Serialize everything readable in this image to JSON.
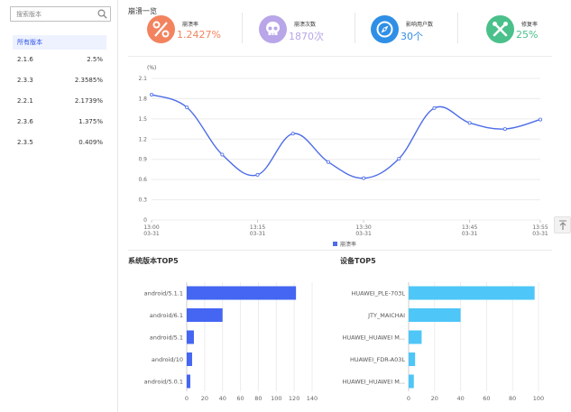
{
  "sidebar": {
    "search_placeholder": "搜索版本",
    "items": [
      {
        "label": "所有版本",
        "value": ""
      },
      {
        "label": "2.1.6",
        "value": "2.5%"
      },
      {
        "label": "2.3.3",
        "value": "2.3585%"
      },
      {
        "label": "2.2.1",
        "value": "2.1739%"
      },
      {
        "label": "2.3.6",
        "value": "1.375%"
      },
      {
        "label": "2.3.5",
        "value": "0.409%"
      }
    ]
  },
  "overview": {
    "title": "崩溃一览",
    "stats": [
      {
        "label": "崩溃率",
        "value": "1.2427%",
        "color": "#f3835f",
        "icon": "percent-icon"
      },
      {
        "label": "崩溃次数",
        "value": "1870次",
        "color": "#b8a6e9",
        "icon": "skull-icon"
      },
      {
        "label": "影响用户数",
        "value": "30个",
        "color": "#2f8fe6",
        "icon": "compass-icon"
      },
      {
        "label": "修复率",
        "value": "25%",
        "color": "#4ac08b",
        "icon": "tools-icon"
      }
    ]
  },
  "chart_data": [
    {
      "type": "line",
      "ylabel": "(%)",
      "ylim": [
        0,
        2.1
      ],
      "yticks": [
        "0",
        "0.3",
        "0.6",
        "0.9",
        "1.2",
        "1.5",
        "1.8",
        "2.1"
      ],
      "xticks": [
        {
          "time": "13:00",
          "date": "03-31"
        },
        {
          "time": "13:15",
          "date": "03-31"
        },
        {
          "time": "13:30",
          "date": "03-31"
        },
        {
          "time": "13:45",
          "date": "03-31"
        },
        {
          "time": "13:55",
          "date": "03-31"
        }
      ],
      "x_minutes": [
        0,
        5,
        10,
        15,
        20,
        25,
        30,
        35,
        40,
        45,
        50,
        55
      ],
      "series": [
        {
          "name": "崩溃率",
          "color": "#4d6de8",
          "values": [
            1.86,
            1.67,
            0.97,
            0.67,
            1.28,
            0.86,
            0.62,
            0.91,
            1.66,
            1.44,
            1.35,
            1.49
          ]
        }
      ],
      "legend": "bottom-center",
      "grid": true
    },
    {
      "type": "bar",
      "orientation": "horizontal",
      "title": "系统版本TOP5",
      "categories": [
        "android/5.1.1",
        "android/6.1",
        "android/5.1",
        "android/10",
        "android/5.0.1"
      ],
      "values": [
        122,
        40,
        8,
        6,
        4
      ],
      "xlim": [
        0,
        140
      ],
      "xticks": [
        "0",
        "20",
        "40",
        "60",
        "80",
        "100",
        "120",
        "140"
      ],
      "color": "#4466f2",
      "grid": true
    },
    {
      "type": "bar",
      "orientation": "horizontal",
      "title": "设备TOP5",
      "categories": [
        "HUAWEI_PLE-703L",
        "JTY_MAICHAI",
        "HUAWEI_HUAWEI M...",
        "HUAWEI_FDR-A03L",
        "HUAWEI_HUAWEI M..."
      ],
      "values": [
        97,
        40,
        10,
        5,
        4
      ],
      "xlim": [
        0,
        100
      ],
      "xticks": [
        "0",
        "20",
        "40",
        "60",
        "80",
        "100"
      ],
      "color": "#4ec6f7",
      "grid": true
    }
  ]
}
